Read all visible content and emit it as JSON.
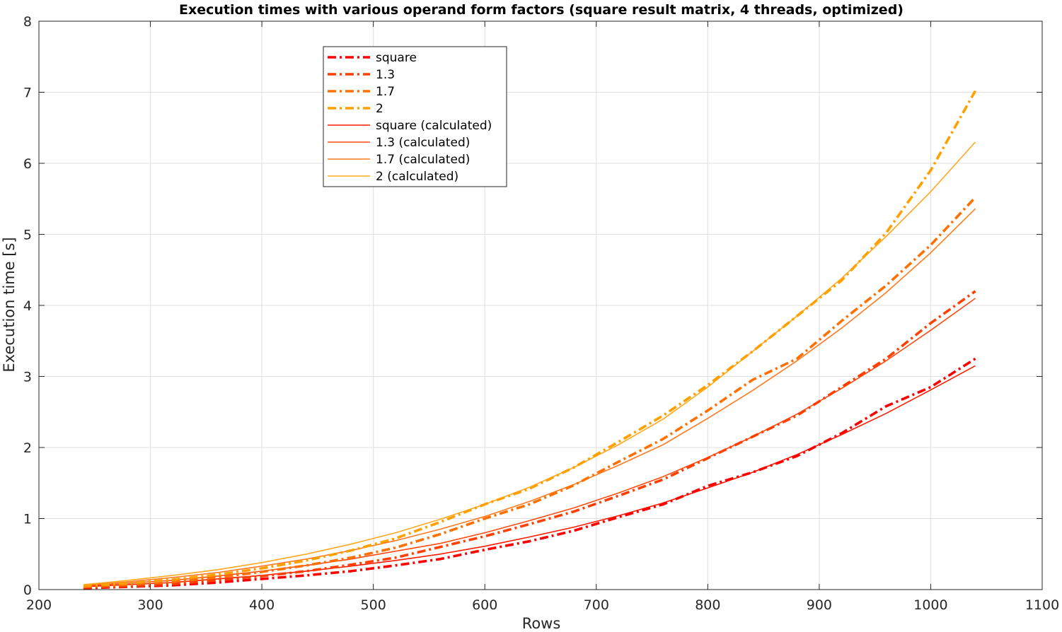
{
  "chart_data": {
    "type": "line",
    "title": "Execution times with various operand form factors (square result matrix, 4 threads, optimized)",
    "xlabel": "Rows",
    "ylabel": "Execution time [s]",
    "xlim": [
      200,
      1100
    ],
    "ylim": [
      0,
      8
    ],
    "xticks": [
      200,
      300,
      400,
      500,
      600,
      700,
      800,
      900,
      1000,
      1100
    ],
    "yticks": [
      0,
      1,
      2,
      3,
      4,
      5,
      6,
      7,
      8
    ],
    "grid": true,
    "legend_position": "top-left inside",
    "series": [
      {
        "name": "square",
        "style": "dashdot",
        "color": "#ff0000",
        "x": [
          240,
          280,
          320,
          360,
          400,
          440,
          480,
          520,
          560,
          600,
          640,
          680,
          720,
          760,
          800,
          840,
          880,
          920,
          960,
          1000,
          1040
        ],
        "y": [
          0.02,
          0.04,
          0.06,
          0.1,
          0.15,
          0.2,
          0.26,
          0.34,
          0.43,
          0.56,
          0.68,
          0.83,
          1.02,
          1.2,
          1.46,
          1.65,
          1.88,
          2.2,
          2.58,
          2.85,
          3.25
        ]
      },
      {
        "name": "1.3",
        "style": "dashdot",
        "color": "#ff4000",
        "x": [
          240,
          280,
          320,
          360,
          400,
          440,
          480,
          520,
          560,
          600,
          640,
          680,
          720,
          760,
          800,
          840,
          880,
          920,
          960,
          1000,
          1040
        ],
        "y": [
          0.03,
          0.05,
          0.08,
          0.13,
          0.19,
          0.26,
          0.35,
          0.45,
          0.6,
          0.75,
          0.92,
          1.1,
          1.32,
          1.55,
          1.85,
          2.15,
          2.45,
          2.85,
          3.25,
          3.75,
          4.2
        ]
      },
      {
        "name": "1.7",
        "style": "dashdot",
        "color": "#ff7000",
        "x": [
          240,
          280,
          320,
          360,
          400,
          440,
          480,
          520,
          560,
          600,
          640,
          680,
          720,
          760,
          800,
          840,
          880,
          920,
          960,
          1000,
          1040
        ],
        "y": [
          0.04,
          0.07,
          0.11,
          0.17,
          0.25,
          0.34,
          0.45,
          0.59,
          0.78,
          1.0,
          1.2,
          1.47,
          1.8,
          2.12,
          2.52,
          2.95,
          3.25,
          3.78,
          4.28,
          4.85,
          5.52
        ]
      },
      {
        "name": "2",
        "style": "dashdot",
        "color": "#ffa000",
        "x": [
          240,
          280,
          320,
          360,
          400,
          440,
          480,
          520,
          560,
          600,
          640,
          680,
          720,
          760,
          800,
          840,
          880,
          920,
          960,
          1000,
          1040
        ],
        "y": [
          0.05,
          0.09,
          0.14,
          0.21,
          0.3,
          0.41,
          0.55,
          0.72,
          0.95,
          1.2,
          1.42,
          1.72,
          2.08,
          2.45,
          2.88,
          3.35,
          3.85,
          4.35,
          5.02,
          5.9,
          7.02
        ]
      },
      {
        "name": "square (calculated)",
        "style": "solid",
        "color": "#ff1a00",
        "x": [
          240,
          280,
          320,
          360,
          400,
          440,
          480,
          520,
          560,
          600,
          640,
          680,
          720,
          760,
          800,
          840,
          880,
          920,
          960,
          1000,
          1040
        ],
        "y": [
          0.04,
          0.07,
          0.1,
          0.15,
          0.2,
          0.26,
          0.33,
          0.41,
          0.5,
          0.61,
          0.74,
          0.88,
          1.04,
          1.22,
          1.43,
          1.65,
          1.9,
          2.18,
          2.48,
          2.81,
          3.15
        ]
      },
      {
        "name": "1.3 (calculated)",
        "style": "solid",
        "color": "#ff4a10",
        "x": [
          240,
          280,
          320,
          360,
          400,
          440,
          480,
          520,
          560,
          600,
          640,
          680,
          720,
          760,
          800,
          840,
          880,
          920,
          960,
          1000,
          1040
        ],
        "y": [
          0.05,
          0.09,
          0.13,
          0.19,
          0.26,
          0.34,
          0.43,
          0.54,
          0.65,
          0.8,
          0.97,
          1.15,
          1.36,
          1.59,
          1.86,
          2.15,
          2.47,
          2.83,
          3.22,
          3.65,
          4.1
        ]
      },
      {
        "name": "1.7 (calculated)",
        "style": "solid",
        "color": "#ff7a20",
        "x": [
          240,
          280,
          320,
          360,
          400,
          440,
          480,
          520,
          560,
          600,
          640,
          680,
          720,
          760,
          800,
          840,
          880,
          920,
          960,
          1000,
          1040
        ],
        "y": [
          0.06,
          0.11,
          0.17,
          0.24,
          0.33,
          0.43,
          0.55,
          0.69,
          0.85,
          1.03,
          1.24,
          1.48,
          1.75,
          2.04,
          2.41,
          2.8,
          3.22,
          3.68,
          4.18,
          4.74,
          5.36
        ]
      },
      {
        "name": "2 (calculated)",
        "style": "solid",
        "color": "#ffa820",
        "x": [
          240,
          280,
          320,
          360,
          400,
          440,
          480,
          520,
          560,
          600,
          640,
          680,
          720,
          760,
          800,
          840,
          880,
          920,
          960,
          1000,
          1040
        ],
        "y": [
          0.07,
          0.13,
          0.2,
          0.28,
          0.38,
          0.5,
          0.64,
          0.8,
          0.99,
          1.2,
          1.44,
          1.72,
          2.04,
          2.4,
          2.85,
          3.35,
          3.85,
          4.38,
          4.97,
          5.6,
          6.3
        ]
      }
    ]
  }
}
